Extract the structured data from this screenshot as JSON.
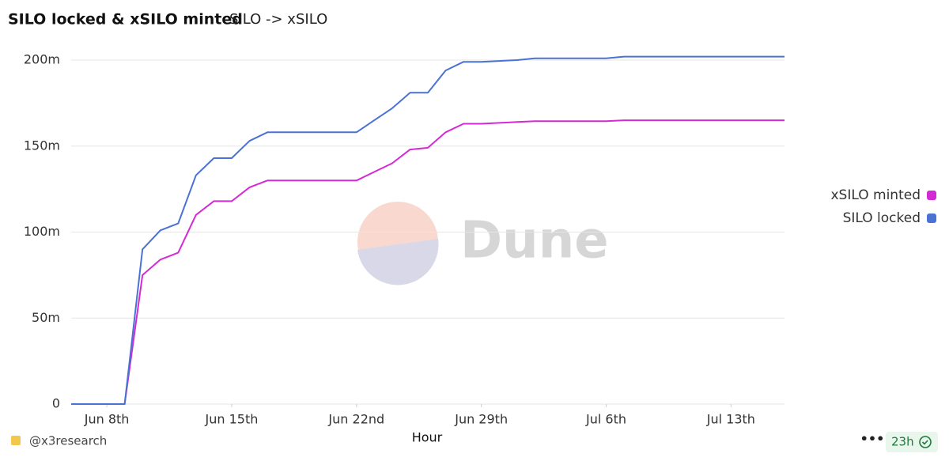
{
  "chart_data": {
    "type": "line",
    "title": "SILO locked & xSILO minted",
    "subtitle": "SILO -> xSILO",
    "x_label": "Hour",
    "x": [
      "Jun 6",
      "Jun 7",
      "Jun 8",
      "Jun 9",
      "Jun 10",
      "Jun 11",
      "Jun 12",
      "Jun 13",
      "Jun 14",
      "Jun 15",
      "Jun 16",
      "Jun 17",
      "Jun 18",
      "Jun 19",
      "Jun 20",
      "Jun 21",
      "Jun 22",
      "Jun 23",
      "Jun 24",
      "Jun 25",
      "Jun 26",
      "Jun 27",
      "Jun 28",
      "Jun 29",
      "Jun 30",
      "Jul 1",
      "Jul 2",
      "Jul 3",
      "Jul 4",
      "Jul 5",
      "Jul 6",
      "Jul 7",
      "Jul 8",
      "Jul 9",
      "Jul 10",
      "Jul 11",
      "Jul 12",
      "Jul 13",
      "Jul 14",
      "Jul 15",
      "Jul 16"
    ],
    "series": [
      {
        "name": "xSILO minted",
        "color": "#d42ad4",
        "values": [
          0,
          0,
          0,
          0,
          75000000,
          84000000,
          88000000,
          110000000,
          118000000,
          118000000,
          126000000,
          130000000,
          130000000,
          130000000,
          130000000,
          130000000,
          130000000,
          135000000,
          140000000,
          148000000,
          149000000,
          158000000,
          163000000,
          163000000,
          163500000,
          164000000,
          164500000,
          164500000,
          164500000,
          164500000,
          164500000,
          165000000,
          165000000,
          165000000,
          165000000,
          165000000,
          165000000,
          165000000,
          165000000,
          165000000,
          165000000
        ]
      },
      {
        "name": "SILO locked",
        "color": "#4a72d4",
        "values": [
          0,
          0,
          0,
          0,
          90000000,
          101000000,
          105000000,
          133000000,
          143000000,
          143000000,
          153000000,
          158000000,
          158000000,
          158000000,
          158000000,
          158000000,
          158000000,
          165000000,
          172000000,
          181000000,
          181000000,
          194000000,
          199000000,
          199000000,
          199500000,
          200000000,
          201000000,
          201000000,
          201000000,
          201000000,
          201000000,
          202000000,
          202000000,
          202000000,
          202000000,
          202000000,
          202000000,
          202000000,
          202000000,
          202000000,
          202000000
        ]
      }
    ],
    "xlim": [
      "Jun 6",
      "Jul 16"
    ],
    "xticks": [
      {
        "value": "Jun 8",
        "label": "Jun 8th"
      },
      {
        "value": "Jun 15",
        "label": "Jun 15th"
      },
      {
        "value": "Jun 22",
        "label": "Jun 22nd"
      },
      {
        "value": "Jun 29",
        "label": "Jun 29th"
      },
      {
        "value": "Jul 6",
        "label": "Jul 6th"
      },
      {
        "value": "Jul 13",
        "label": "Jul 13th"
      }
    ],
    "ylim": [
      0,
      200000000
    ],
    "yticks": [
      0,
      {
        "value": 50000000,
        "label": "50m"
      },
      {
        "value": 100000000,
        "label": "100m"
      },
      {
        "value": 150000000,
        "label": "150m"
      },
      {
        "value": 200000000,
        "label": "200m"
      }
    ],
    "grid": true,
    "legend": "right"
  },
  "watermark": "Dune",
  "footer": {
    "author": "@x3research",
    "refresh": "23h"
  }
}
